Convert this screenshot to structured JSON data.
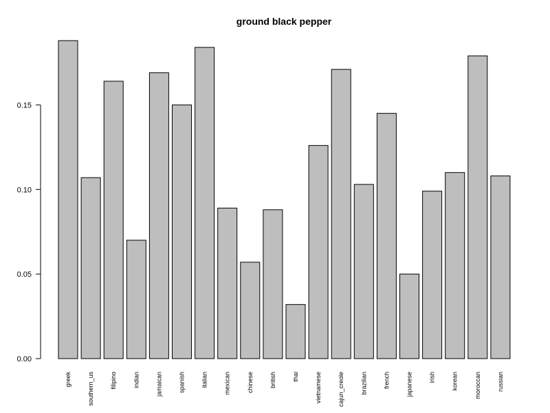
{
  "chart_data": {
    "type": "bar",
    "title": "ground black pepper",
    "xlabel": "",
    "ylabel": "",
    "categories": [
      "greek",
      "southern_us",
      "filipino",
      "indian",
      "jamaican",
      "spanish",
      "italian",
      "mexican",
      "chinese",
      "british",
      "thai",
      "vietnamese",
      "cajun_creole",
      "brazilian",
      "french",
      "japanese",
      "irish",
      "korean",
      "moroccan",
      "russian"
    ],
    "values": [
      0.188,
      0.107,
      0.164,
      0.07,
      0.169,
      0.15,
      0.184,
      0.089,
      0.057,
      0.088,
      0.032,
      0.126,
      0.171,
      0.103,
      0.145,
      0.05,
      0.099,
      0.11,
      0.179,
      0.108
    ],
    "ylim": [
      0,
      0.188
    ],
    "yticks": [
      0.0,
      0.05,
      0.1,
      0.15
    ],
    "ytick_labels": [
      "0.00",
      "0.05",
      "0.10",
      "0.15"
    ],
    "bar_color": "#bebebe",
    "grid": false,
    "legend": "none"
  }
}
